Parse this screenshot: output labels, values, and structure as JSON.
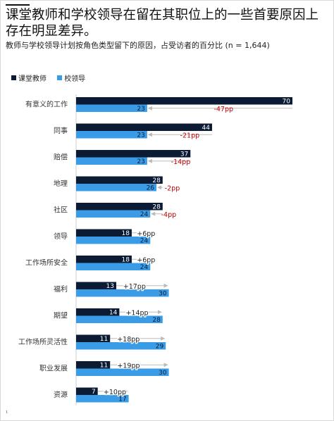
{
  "title": "课堂教师和学校领导在留在其职位上的一些首要原因上存在明显差异。",
  "subtitle": "教师与学校领导计划按角色类型留下的原因，占受访者的百分比  (n = 1,644)",
  "footnote": "¹",
  "colors": {
    "teacher": "#0b1b33",
    "leader": "#3a9be6",
    "negative": "#c00000",
    "positive": "#222222",
    "arrow": "#bbbbbb"
  },
  "chart_data": {
    "type": "bar",
    "orientation": "horizontal",
    "legend_position": "top-left",
    "categories": [
      "有意义的工作",
      "同事",
      "赔偿",
      "地理",
      "社区",
      "领导",
      "工作场所安全",
      "福利",
      "期望",
      "工作场所灵活性",
      "职业发展",
      "资源"
    ],
    "series": [
      {
        "name": "课堂教师",
        "values": [
          70,
          44,
          37,
          28,
          28,
          18,
          18,
          13,
          14,
          11,
          11,
          7
        ]
      },
      {
        "name": "校领导",
        "values": [
          23,
          23,
          23,
          26,
          24,
          24,
          24,
          30,
          28,
          29,
          30,
          17
        ]
      }
    ],
    "differences": [
      "-47pp",
      "-21pp",
      "-14pp",
      "-2pp",
      "-4pp",
      "+6pp",
      "+6pp",
      "+17pp",
      "+14pp",
      "+18pp",
      "+19pp",
      "+10pp"
    ],
    "xlim": [
      0,
      70
    ]
  }
}
